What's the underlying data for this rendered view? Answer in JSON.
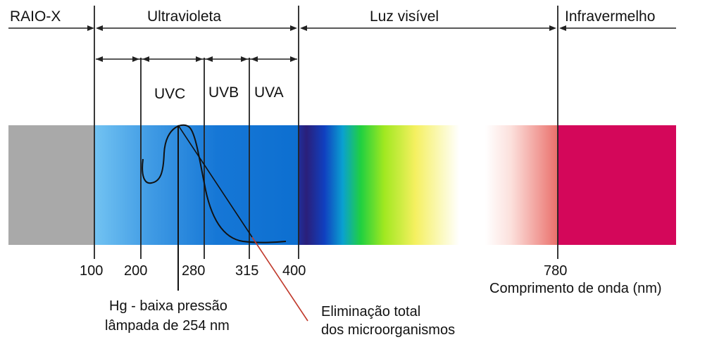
{
  "regions": {
    "xray": "RAIO-X",
    "ultraviolet": "Ultravioleta",
    "visible": "Luz visível",
    "infrared": "Infravermelho"
  },
  "uv_bands": {
    "uvc": "UVC",
    "uvb": "UVB",
    "uva": "UVA"
  },
  "ticks": [
    "100",
    "200",
    "280",
    "315",
    "400",
    "780"
  ],
  "axis_label": "Comprimento de onda (nm)",
  "lamp_annotation": {
    "line1": "Hg - baixa pressão",
    "line2": "lâmpada de 254 nm"
  },
  "germicidal_annotation": {
    "line1": "Eliminação total",
    "line2": "dos microorganismos"
  },
  "colors": {
    "xray": "#a9a9a9",
    "uv_light": "#66bdf0",
    "uv_dark": "#0d6fd0",
    "violet": "#2a1f7a",
    "infrared": "#d4075a",
    "annotation_line": "#c0392b"
  }
}
